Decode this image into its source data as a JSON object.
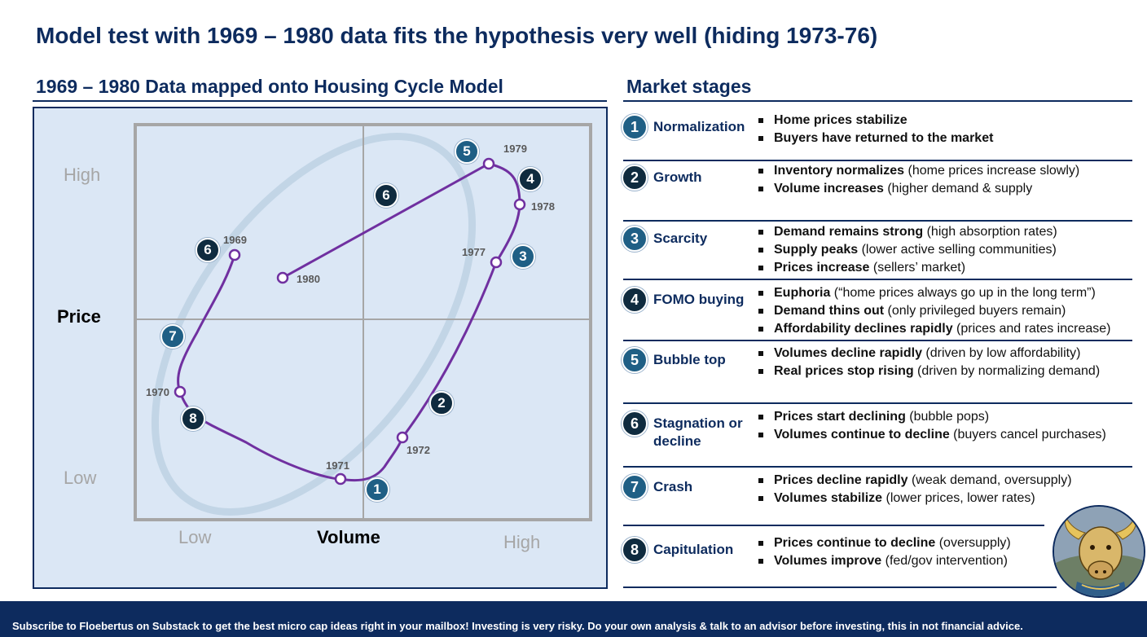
{
  "title": "Model test with 1969 – 1980 data fits the hypothesis very well (hiding 1973-76)",
  "left_heading": "1969 – 1980 Data mapped onto Housing Cycle Model",
  "right_heading": "Market stages",
  "diagram": {
    "y_high": "High",
    "y_low": "Low",
    "y_title": "Price",
    "x_low": "Low",
    "x_high": "High",
    "x_title": "Volume",
    "years": {
      "y1969": "1969",
      "y1970": "1970",
      "y1971": "1971",
      "y1972": "1972",
      "y1977": "1977",
      "y1978": "1978",
      "y1979": "1979",
      "y1980": "1980"
    },
    "badges": {
      "b1": "1",
      "b2": "2",
      "b3": "3",
      "b4": "4",
      "b5": "5",
      "b6a": "6",
      "b6b": "6",
      "b7": "7",
      "b8": "8"
    },
    "colors": {
      "path": "#7030a0",
      "badge_dark": "#0f2b3f",
      "badge_teal": "#1f5f85",
      "ring": "#c2d5e6"
    }
  },
  "stages": [
    {
      "num": "1",
      "name": "Normalization",
      "bullets": [
        {
          "b": "Home prices stabilize",
          "t": ""
        },
        {
          "b": "Buyers  have returned to the market",
          "t": ""
        }
      ]
    },
    {
      "num": "2",
      "name": "Growth",
      "bullets": [
        {
          "b": "Inventory normalizes",
          "t": " (home prices increase slowly)"
        },
        {
          "b": "Volume increases",
          "t": " (higher  demand & supply"
        }
      ]
    },
    {
      "num": "3",
      "name": "Scarcity",
      "bullets": [
        {
          "b": "Demand remains strong",
          "t": " (high absorption rates)"
        },
        {
          "b": "Supply peaks",
          "t": " (lower active selling communities)"
        },
        {
          "b": "Prices increase",
          "t": " (sellers’ market)"
        }
      ]
    },
    {
      "num": "4",
      "name": "FOMO buying",
      "bullets": [
        {
          "b": "Euphoria",
          "t": " (“home prices always go up in the long term”)"
        },
        {
          "b": "Demand thins out",
          "t": " (only privileged buyers remain)"
        },
        {
          "b": "Affordability declines rapidly",
          "t": " (prices and rates increase)"
        }
      ]
    },
    {
      "num": "5",
      "name": "Bubble top",
      "bullets": [
        {
          "b": "Volumes decline rapidly",
          "t": " (driven by low affordability)"
        },
        {
          "b": "Real prices stop rising",
          "t": " (driven by normalizing demand)"
        }
      ]
    },
    {
      "num": "6",
      "name": "Stagnation or decline",
      "bullets": [
        {
          "b": "Prices start declining",
          "t": " (bubble pops)"
        },
        {
          "b": "Volumes continue to decline",
          "t": " (buyers cancel purchases)"
        }
      ]
    },
    {
      "num": "7",
      "name": "Crash",
      "bullets": [
        {
          "b": "Prices decline rapidly",
          "t": " (weak demand, oversupply)"
        },
        {
          "b": "Volumes stabilize",
          "t": " (lower prices, lower rates)"
        }
      ]
    },
    {
      "num": "8",
      "name": "Capitulation",
      "bullets": [
        {
          "b": "Prices continue to decline",
          "t": " (oversupply)"
        },
        {
          "b": "Volumes improve",
          "t": " (fed/gov intervention)"
        }
      ]
    }
  ],
  "footer": "Subscribe to Floebertus on Substack to get the best micro cap ideas right in your mailbox!   Investing is very risky.   Do your own analysis & talk to an advisor before investing, this in not financial advice."
}
